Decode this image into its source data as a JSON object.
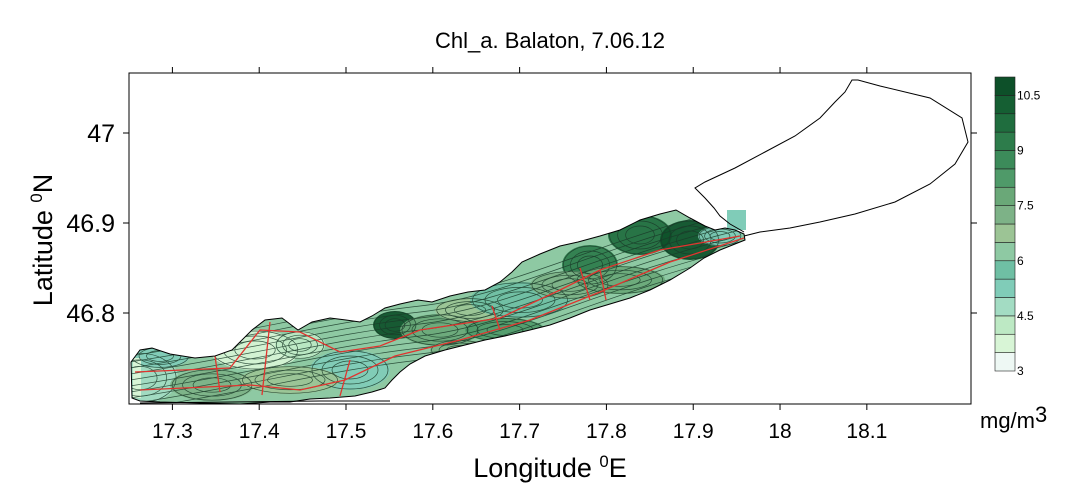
{
  "chart_data": {
    "type": "heatmap",
    "title": "Chl_a. Balaton, 7.06.12",
    "xlabel": {
      "text": "Longitude ",
      "sup": "0",
      "after": "E"
    },
    "ylabel": {
      "text": "Latitude ",
      "sup": "0",
      "after": "N"
    },
    "xlim": [
      17.25,
      18.22
    ],
    "ylim": [
      46.7,
      46.765
    ],
    "xlim_full": [
      17.25,
      18.22
    ],
    "ylim_full": [
      46.7,
      47.065
    ],
    "x_ticks": [
      "17.3",
      "17.4",
      "17.5",
      "17.6",
      "17.7",
      "17.8",
      "17.9",
      "18",
      "18.1"
    ],
    "x_tick_values": [
      17.3,
      17.4,
      17.5,
      17.6,
      17.7,
      17.8,
      17.9,
      18.0,
      18.1
    ],
    "y_ticks": [
      "47",
      "46.9",
      "46.8"
    ],
    "y_tick_values": [
      47.0,
      46.9,
      46.8
    ],
    "colorbar": {
      "unit": "mg/m",
      "unit_sup": "3",
      "levels": [
        3,
        3.5,
        4,
        4.5,
        5,
        5.5,
        6,
        6.5,
        7,
        7.5,
        8,
        8.5,
        9,
        9.5,
        10,
        10.5,
        11
      ],
      "labels": [
        "10.5",
        "9",
        "7.5",
        "6",
        "4.5",
        "3"
      ],
      "label_values": [
        10.5,
        9,
        7.5,
        6,
        4.5,
        3
      ],
      "colors": [
        "#eef8f4",
        "#d8f5d6",
        "#bde9c4",
        "#a3dcc3",
        "#80ccb8",
        "#6fbfa4",
        "#8ec9a3",
        "#9cc495",
        "#7db287",
        "#6aa878",
        "#4f9a69",
        "#3c8b5a",
        "#2d7c4b",
        "#1f6d3e",
        "#155f33",
        "#0d5029"
      ]
    },
    "lake_outline_color": "#000000",
    "survey_track_color": "#e0342f"
  }
}
